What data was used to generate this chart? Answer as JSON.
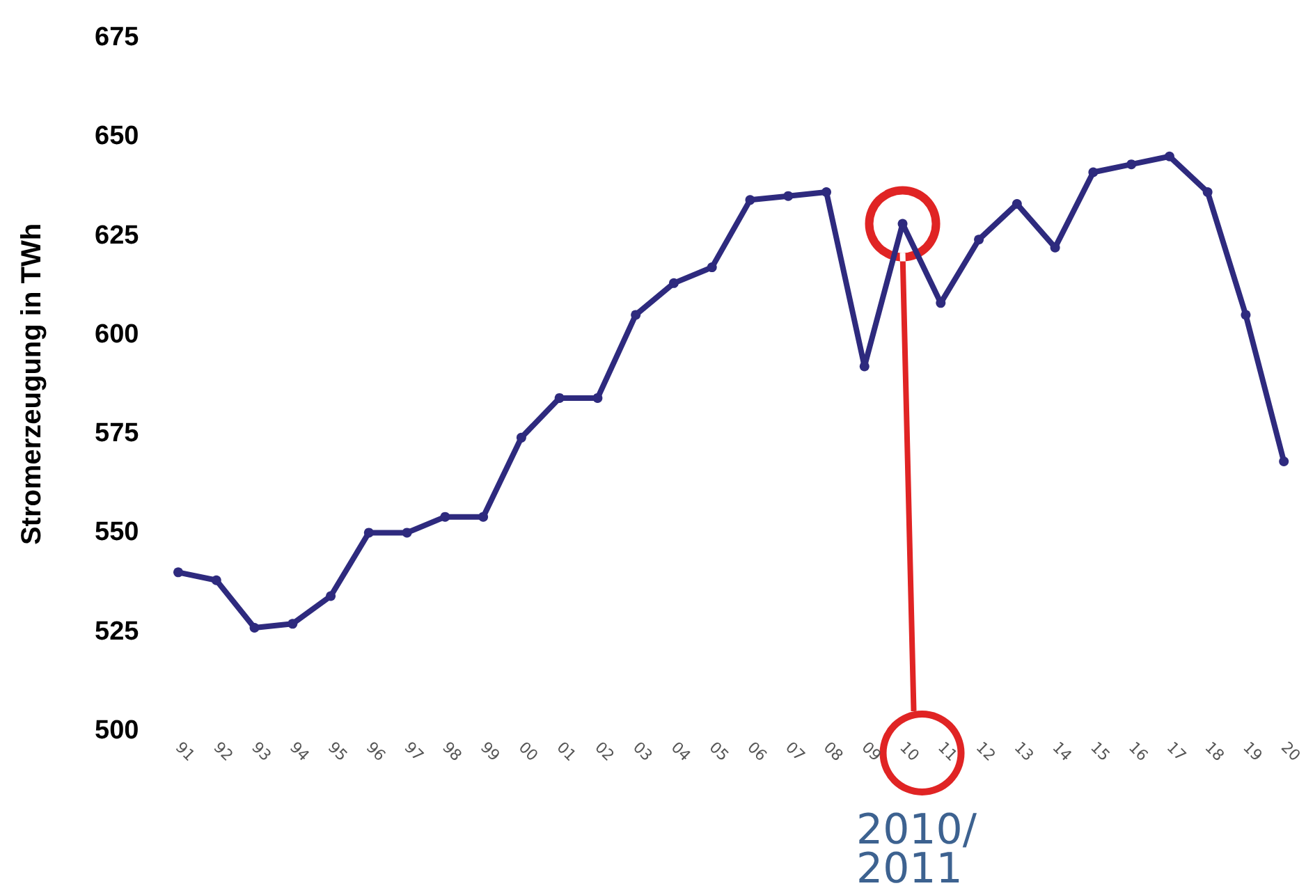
{
  "chart_data": {
    "type": "line",
    "ylabel": "Stromerzeugung in TWh",
    "categories": [
      "91",
      "92",
      "93",
      "94",
      "95",
      "96",
      "97",
      "98",
      "99",
      "00",
      "01",
      "02",
      "03",
      "04",
      "05",
      "06",
      "07",
      "08",
      "09",
      "10",
      "11",
      "12",
      "13",
      "14",
      "15",
      "16",
      "17",
      "18",
      "19",
      "20"
    ],
    "series": [
      {
        "color": "#2e2a7e",
        "values": [
          540,
          538,
          526,
          527,
          534,
          550,
          550,
          554,
          554,
          574,
          584,
          584,
          605,
          613,
          617,
          634,
          635,
          636,
          592,
          628,
          608,
          624,
          633,
          622,
          641,
          643,
          645,
          636,
          605,
          568
        ]
      }
    ],
    "ylim": [
      500,
      675
    ],
    "yticks": [
      500,
      525,
      550,
      575,
      600,
      625,
      650,
      675
    ],
    "grid": false,
    "marker": "circle",
    "line_style": "solid",
    "annotations": [
      "2010/2011"
    ]
  }
}
